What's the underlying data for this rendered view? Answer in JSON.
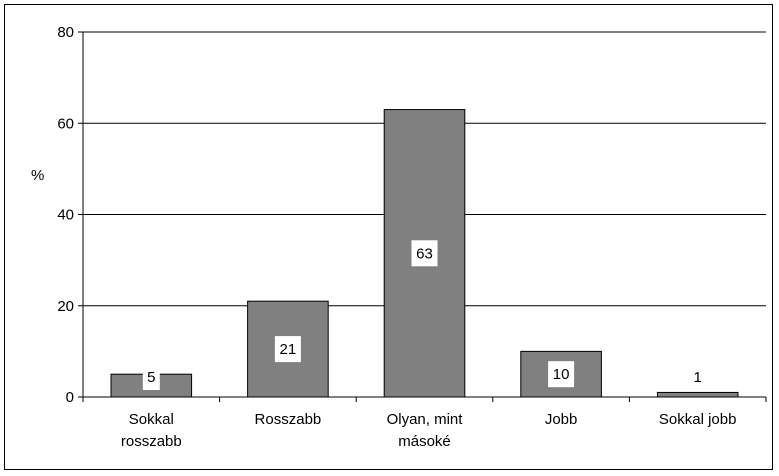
{
  "chart_data": {
    "type": "bar",
    "categories": [
      [
        "Sokkal",
        "rosszabb"
      ],
      [
        "Rosszabb"
      ],
      [
        "Olyan, mint",
        "másoké"
      ],
      [
        "Jobb"
      ],
      [
        "Sokkal jobb"
      ]
    ],
    "values": [
      5,
      21,
      63,
      10,
      1
    ],
    "data_labels": [
      "5",
      "21",
      "63",
      "10",
      "1"
    ],
    "ylabel": "%",
    "ylim": [
      0,
      80
    ],
    "yticks": [
      "0",
      "20",
      "40",
      "60",
      "80"
    ],
    "grid": true,
    "legend": "none",
    "colors": {
      "bar_fill": "#808080",
      "bar_stroke": "#000000",
      "grid": "#000000",
      "label_box": "#ffffff"
    }
  }
}
